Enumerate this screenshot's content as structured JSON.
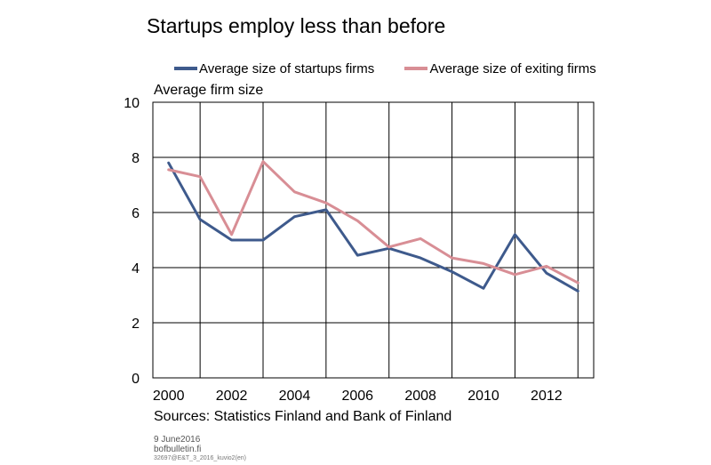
{
  "chart_data": {
    "type": "line",
    "title": "Startups employ less than before",
    "ylabel": "Average firm size",
    "xlabel": "",
    "xlim": [
      1999.5,
      2013.5
    ],
    "ylim": [
      0,
      10
    ],
    "x_ticks": [
      2000,
      2002,
      2004,
      2006,
      2008,
      2010,
      2012
    ],
    "y_ticks": [
      0,
      2,
      4,
      6,
      8,
      10
    ],
    "grid": true,
    "legend_position": "top",
    "series": [
      {
        "name": "Average size of startups firms",
        "color": "#3e5a8c",
        "x": [
          2000,
          2001,
          2002,
          2003,
          2004,
          2005,
          2006,
          2007,
          2008,
          2009,
          2010,
          2011,
          2012,
          2013
        ],
        "values": [
          7.8,
          5.75,
          5.0,
          5.0,
          5.85,
          6.1,
          4.45,
          4.7,
          4.35,
          3.85,
          3.25,
          5.2,
          3.8,
          3.15
        ]
      },
      {
        "name": "Average size of exiting firms",
        "color": "#d88e95",
        "x": [
          2000,
          2001,
          2002,
          2003,
          2004,
          2005,
          2006,
          2007,
          2008,
          2009,
          2010,
          2011,
          2012,
          2013
        ],
        "values": [
          7.55,
          7.3,
          5.2,
          7.85,
          6.75,
          6.35,
          5.7,
          4.75,
          5.05,
          4.35,
          4.15,
          3.75,
          4.05,
          3.45
        ]
      }
    ]
  },
  "footer": {
    "source": "Sources: Statistics Finland and Bank of Finland",
    "date": "9 June2016",
    "site": "bofbulletin.fi",
    "code": "32697@E&T_3_2016_kuvio2(en)"
  }
}
